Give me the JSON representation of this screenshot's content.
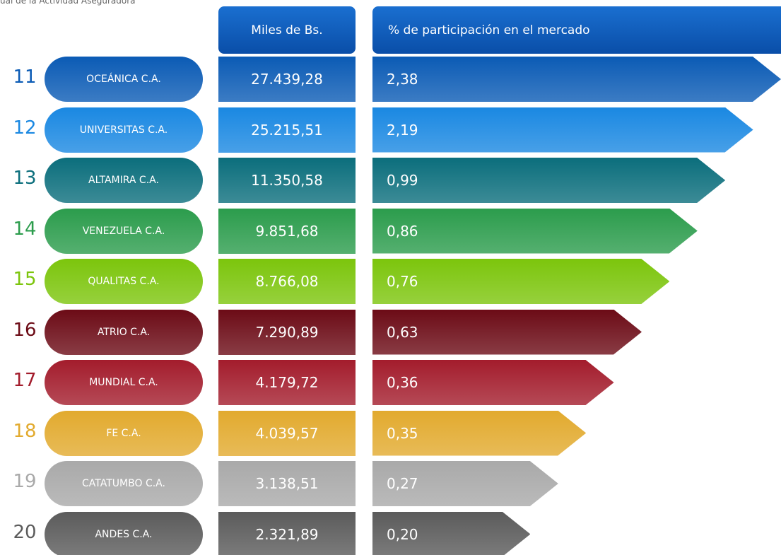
{
  "top_text": "ual de la Actividad Aseguradora",
  "headers": {
    "amount": "Miles de Bs.",
    "share": "% de participación en el mercado"
  },
  "rows": [
    {
      "rank": "11",
      "company": "OCEÁNICA C.A.",
      "amount": "27.439,28",
      "share": "2,38",
      "color": "#0b5bb5"
    },
    {
      "rank": "12",
      "company": "UNIVERSITAS C.A.",
      "amount": "25.215,51",
      "share": "2,19",
      "color": "#1a88e2"
    },
    {
      "rank": "13",
      "company": "ALTAMIRA C.A.",
      "amount": "11.350,58",
      "share": "0,99",
      "color": "#0b6e7c"
    },
    {
      "rank": "14",
      "company": "VENEZUELA C.A.",
      "amount": "9.851,68",
      "share": "0,86",
      "color": "#2b9c4c"
    },
    {
      "rank": "15",
      "company": "QUALITAS C.A.",
      "amount": "8.766,08",
      "share": "0,76",
      "color": "#7cc50c"
    },
    {
      "rank": "16",
      "company": "ATRIO C.A.",
      "amount": "7.290,89",
      "share": "0,63",
      "color": "#6c0b16"
    },
    {
      "rank": "17",
      "company": "MUNDIAL C.A.",
      "amount": "4.179,72",
      "share": "0,36",
      "color": "#a31c2c"
    },
    {
      "rank": "18",
      "company": "FE C.A.",
      "amount": "4.039,57",
      "share": "0,35",
      "color": "#e2aa2e"
    },
    {
      "rank": "19",
      "company": "CATATUMBO C.A.",
      "amount": "3.138,51",
      "share": "0,27",
      "color": "#a9a9a9"
    },
    {
      "rank": "20",
      "company": "ANDES C.A.",
      "amount": "2.321,89",
      "share": "0,20",
      "color": "#5b5b5b"
    }
  ]
}
